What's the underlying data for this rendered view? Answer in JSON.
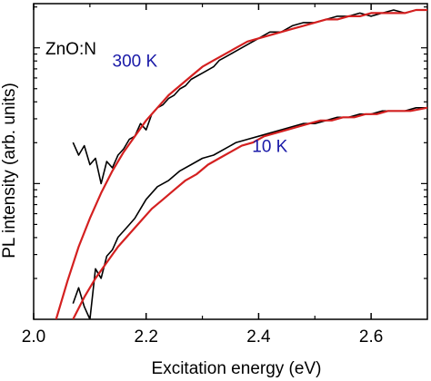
{
  "chart_data": {
    "type": "line",
    "panel_label": "ZnO:N",
    "xlabel": "Excitation energy (eV)",
    "ylabel": "PL intensity (arb. units)",
    "xlim": [
      2.0,
      2.7
    ],
    "x_ticks": [
      2.0,
      2.2,
      2.4,
      2.6
    ],
    "x_tick_labels": [
      "2.0",
      "2.2",
      "2.4",
      "2.6"
    ],
    "ylim": [
      0.0,
      1.0
    ],
    "y_scale": "log",
    "y_major_ticks": [
      0.43
    ],
    "grid": false,
    "colors": {
      "data": "#000000",
      "fit": "#d42020",
      "label": "#1a1aa8"
    },
    "series": [
      {
        "name": "300 K",
        "kind": "measured",
        "x": [
          2.07,
          2.08,
          2.09,
          2.1,
          2.11,
          2.12,
          2.13,
          2.14,
          2.15,
          2.16,
          2.17,
          2.18,
          2.19,
          2.2,
          2.21,
          2.22,
          2.23,
          2.24,
          2.25,
          2.26,
          2.27,
          2.28,
          2.29,
          2.3,
          2.31,
          2.32,
          2.33,
          2.34,
          2.35,
          2.36,
          2.38,
          2.4,
          2.42,
          2.44,
          2.46,
          2.48,
          2.5,
          2.52,
          2.54,
          2.56,
          2.58,
          2.6,
          2.62,
          2.64,
          2.66,
          2.68,
          2.7
        ],
        "y": [
          0.56,
          0.52,
          0.55,
          0.49,
          0.51,
          0.43,
          0.5,
          0.48,
          0.52,
          0.54,
          0.57,
          0.58,
          0.62,
          0.6,
          0.65,
          0.67,
          0.68,
          0.7,
          0.71,
          0.73,
          0.74,
          0.76,
          0.77,
          0.78,
          0.79,
          0.8,
          0.82,
          0.83,
          0.84,
          0.85,
          0.87,
          0.89,
          0.91,
          0.91,
          0.93,
          0.94,
          0.94,
          0.95,
          0.96,
          0.96,
          0.97,
          0.96,
          0.97,
          0.98,
          0.97,
          0.98,
          0.98
        ]
      },
      {
        "name": "300 K",
        "kind": "fit",
        "x": [
          2.04,
          2.06,
          2.08,
          2.1,
          2.12,
          2.14,
          2.16,
          2.18,
          2.2,
          2.22,
          2.24,
          2.26,
          2.28,
          2.3,
          2.32,
          2.34,
          2.36,
          2.38,
          2.4,
          2.42,
          2.44,
          2.46,
          2.48,
          2.5,
          2.52,
          2.54,
          2.56,
          2.58,
          2.6,
          2.62,
          2.64,
          2.66,
          2.68,
          2.7
        ],
        "y": [
          0.0,
          0.12,
          0.23,
          0.32,
          0.4,
          0.47,
          0.53,
          0.58,
          0.63,
          0.67,
          0.71,
          0.74,
          0.77,
          0.8,
          0.82,
          0.84,
          0.86,
          0.88,
          0.89,
          0.9,
          0.91,
          0.92,
          0.93,
          0.94,
          0.95,
          0.95,
          0.96,
          0.96,
          0.97,
          0.97,
          0.97,
          0.97,
          0.98,
          0.98
        ]
      },
      {
        "name": "10 K",
        "kind": "measured",
        "x": [
          2.07,
          2.08,
          2.09,
          2.1,
          2.11,
          2.12,
          2.13,
          2.14,
          2.15,
          2.16,
          2.17,
          2.18,
          2.19,
          2.2,
          2.22,
          2.24,
          2.26,
          2.28,
          2.3,
          2.32,
          2.34,
          2.36,
          2.38,
          2.4,
          2.42,
          2.44,
          2.46,
          2.48,
          2.5,
          2.52,
          2.54,
          2.56,
          2.58,
          2.6,
          2.62,
          2.64,
          2.66,
          2.68,
          2.7
        ],
        "y": [
          0.05,
          0.1,
          0.04,
          0.0,
          0.16,
          0.13,
          0.2,
          0.22,
          0.26,
          0.28,
          0.3,
          0.32,
          0.35,
          0.38,
          0.42,
          0.44,
          0.47,
          0.49,
          0.51,
          0.52,
          0.54,
          0.56,
          0.57,
          0.58,
          0.59,
          0.6,
          0.61,
          0.62,
          0.62,
          0.63,
          0.64,
          0.64,
          0.65,
          0.65,
          0.66,
          0.66,
          0.66,
          0.67,
          0.67
        ]
      },
      {
        "name": "10 K",
        "kind": "fit",
        "x": [
          2.07,
          2.09,
          2.11,
          2.13,
          2.15,
          2.17,
          2.19,
          2.21,
          2.23,
          2.25,
          2.27,
          2.29,
          2.31,
          2.33,
          2.35,
          2.37,
          2.39,
          2.41,
          2.43,
          2.45,
          2.47,
          2.49,
          2.51,
          2.53,
          2.55,
          2.57,
          2.59,
          2.61,
          2.63,
          2.65,
          2.67,
          2.7
        ],
        "y": [
          0.0,
          0.07,
          0.13,
          0.18,
          0.23,
          0.27,
          0.31,
          0.35,
          0.38,
          0.41,
          0.44,
          0.46,
          0.49,
          0.51,
          0.53,
          0.55,
          0.56,
          0.58,
          0.59,
          0.6,
          0.61,
          0.62,
          0.63,
          0.63,
          0.64,
          0.64,
          0.65,
          0.65,
          0.66,
          0.66,
          0.66,
          0.67
        ]
      }
    ],
    "series_labels": [
      {
        "text": "300 K",
        "x": 2.18,
        "y": 0.8
      },
      {
        "text": "10 K",
        "x": 2.42,
        "y": 0.53
      }
    ]
  }
}
